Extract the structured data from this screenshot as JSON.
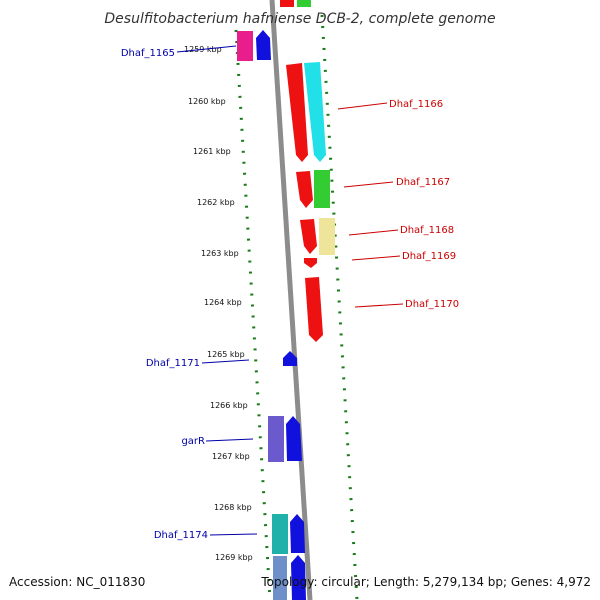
{
  "title": "Desulfitobacterium hafniense DCB-2, complete genome",
  "accession": "Accession: NC_011830",
  "summary": "Topology: circular; Length: 5,279,134 bp; Genes: 4,972",
  "ticks": [
    "1259 kbp",
    "1260 kbp",
    "1261 kbp",
    "1262 kbp",
    "1263 kbp",
    "1264 kbp",
    "1265 kbp",
    "1266 kbp",
    "1267 kbp",
    "1268 kbp",
    "1269 kbp"
  ],
  "labels_left": [
    "Dhaf_1165",
    "Dhaf_1171",
    "garR",
    "Dhaf_1174"
  ],
  "labels_right": [
    "Dhaf_1166",
    "Dhaf_1167",
    "Dhaf_1168",
    "Dhaf_1169",
    "Dhaf_1170"
  ],
  "colors": {
    "backbone": "#8c8c8c",
    "dots": "#1a7a1a",
    "forward_label": "#0000aa",
    "reverse_label": "#cc0000",
    "gene_red": "#ee1111",
    "gene_cyan": "#22e0e8",
    "gene_green": "#33cc33",
    "gene_yellow": "#eee59a",
    "gene_blue": "#1111dd",
    "gene_magenta": "#e81e8c",
    "gene_purple": "#6a5acd",
    "gene_teal": "#20b2aa",
    "gene_steel": "#6e8fc8"
  }
}
